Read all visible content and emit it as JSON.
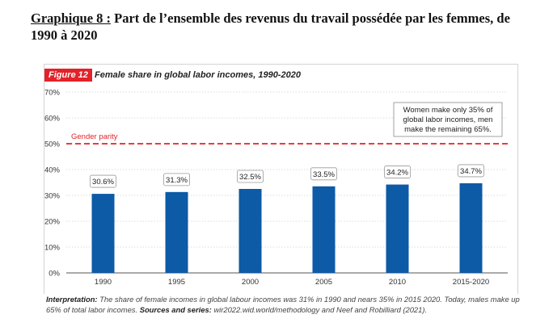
{
  "heading": {
    "label": "Graphique 8 :",
    "text": " Part de l’ensemble des revenus du travail possédée par les femmes, de 1990 à 2020"
  },
  "figure": {
    "tag": "Figure 12",
    "title": "Female share in global labor incomes, 1990-2020"
  },
  "chart_data": {
    "type": "bar",
    "categories": [
      "1990",
      "1995",
      "2000",
      "2005",
      "2010",
      "2015-2020"
    ],
    "values": [
      30.6,
      31.3,
      32.5,
      33.5,
      34.2,
      34.7
    ],
    "value_labels": [
      "30.6%",
      "31.3%",
      "32.5%",
      "33.5%",
      "34.2%",
      "34.7%"
    ],
    "ylim": [
      0,
      70
    ],
    "yticks": [
      0,
      10,
      20,
      30,
      40,
      50,
      60,
      70
    ],
    "ytick_labels": [
      "0%",
      "10%",
      "20%",
      "30%",
      "40%",
      "50%",
      "60%",
      "70%"
    ],
    "reference_line": {
      "value": 50,
      "label": "Gender parity",
      "color": "#e32229"
    },
    "annotation": [
      "Women make only 35% of",
      "global labor incomes, men",
      "make the remaining  65%."
    ],
    "bar_color": "#0d5aa7",
    "gridlines": true
  },
  "footnote": {
    "interpretation_label": "Interpretation:",
    "interpretation_text": " The share of female incomes in global labour incomes was 31% in 1990 and nears 35% in 2015 2020. Today, males make up 65% of total labor incomes. ",
    "sources_label": "Sources and series:",
    "sources_text": " wir2022.wid.world/methodology and Neef and Robilliard (2021)."
  }
}
